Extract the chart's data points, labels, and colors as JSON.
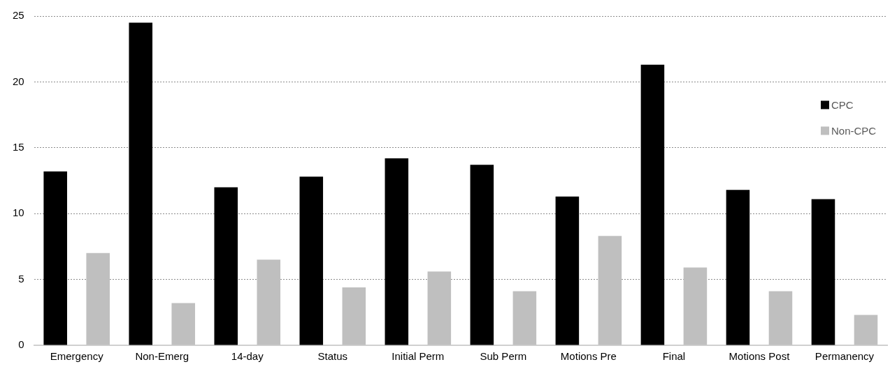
{
  "chart_data": {
    "type": "bar",
    "categories": [
      "Emergency",
      "Non-Emerg",
      "14-day",
      "Status",
      "Initial Perm",
      "Sub Perm",
      "Motions Pre",
      "Final",
      "Motions Post",
      "Permanency"
    ],
    "series": [
      {
        "name": "CPC",
        "color": "#000000",
        "values": [
          13.2,
          24.5,
          12.0,
          12.8,
          14.2,
          13.7,
          11.3,
          21.3,
          11.8,
          11.1
        ]
      },
      {
        "name": "Non-CPC",
        "color": "#bfbfbf",
        "values": [
          7.0,
          3.2,
          6.5,
          4.4,
          5.6,
          4.1,
          8.3,
          5.9,
          4.1,
          2.3
        ]
      }
    ],
    "ylim": [
      0,
      25
    ],
    "yticks": [
      0,
      5,
      10,
      15,
      20,
      25
    ],
    "grid": "y",
    "legend": "right"
  }
}
